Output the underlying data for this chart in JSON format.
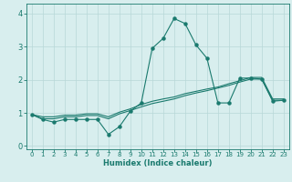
{
  "xlabel": "Humidex (Indice chaleur)",
  "ylabel": "",
  "x": [
    0,
    1,
    2,
    3,
    4,
    5,
    6,
    7,
    8,
    9,
    10,
    11,
    12,
    13,
    14,
    15,
    16,
    17,
    18,
    19,
    20,
    21,
    22,
    23
  ],
  "line1": [
    0.95,
    0.8,
    0.72,
    0.8,
    0.8,
    0.8,
    0.8,
    0.35,
    0.58,
    1.05,
    1.3,
    2.95,
    3.25,
    3.85,
    3.7,
    3.05,
    2.65,
    1.3,
    1.3,
    2.05,
    2.05,
    2.02,
    1.35,
    1.38
  ],
  "line2": [
    0.95,
    0.82,
    0.82,
    0.88,
    0.88,
    0.92,
    0.92,
    0.82,
    0.97,
    1.07,
    1.18,
    1.28,
    1.35,
    1.42,
    1.52,
    1.6,
    1.67,
    1.75,
    1.83,
    1.93,
    2.02,
    2.02,
    1.38,
    1.38
  ],
  "line3": [
    0.95,
    0.88,
    0.88,
    0.93,
    0.93,
    0.97,
    0.97,
    0.88,
    1.02,
    1.12,
    1.25,
    1.35,
    1.42,
    1.48,
    1.58,
    1.65,
    1.72,
    1.78,
    1.88,
    1.97,
    2.07,
    2.07,
    1.42,
    1.42
  ],
  "line_color": "#1a7a6e",
  "bg_color": "#d8eeee",
  "grid_color": "#b8d8d8",
  "ylim": [
    -0.1,
    4.3
  ],
  "xlim": [
    -0.5,
    23.5
  ]
}
